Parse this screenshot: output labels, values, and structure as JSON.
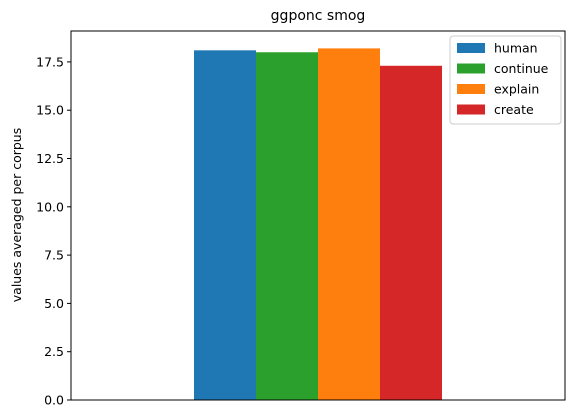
{
  "chart_data": {
    "type": "bar",
    "title": "ggponc smog",
    "xlabel": "",
    "ylabel": "values averaged per corpus",
    "categories": [
      ""
    ],
    "series": [
      {
        "name": "human",
        "values": [
          18.1
        ],
        "color": "#1f77b4"
      },
      {
        "name": "continue",
        "values": [
          18.0
        ],
        "color": "#2ca02c"
      },
      {
        "name": "explain",
        "values": [
          18.2
        ],
        "color": "#ff7f0e"
      },
      {
        "name": "create",
        "values": [
          17.3
        ],
        "color": "#d62728"
      }
    ],
    "ylim": [
      0,
      19.1
    ],
    "yticks": [
      0.0,
      2.5,
      5.0,
      7.5,
      10.0,
      12.5,
      15.0,
      17.5
    ],
    "ytick_labels": [
      "0.0",
      "2.5",
      "5.0",
      "7.5",
      "10.0",
      "12.5",
      "15.0",
      "17.5"
    ],
    "grid": false,
    "legend_position": "top-right"
  }
}
